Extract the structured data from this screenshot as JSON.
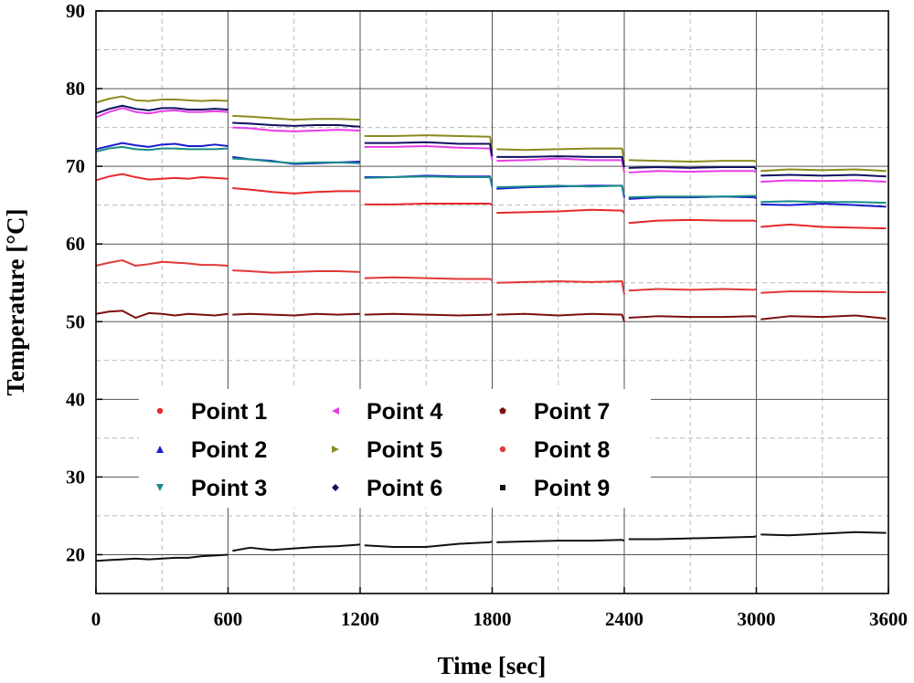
{
  "chart_data": {
    "type": "line",
    "title": "",
    "xlabel": "Time [sec]",
    "ylabel": "Temperature [°C]",
    "xlim": [
      0,
      3600
    ],
    "ylim": [
      15,
      90
    ],
    "xticks": [
      0,
      600,
      1200,
      1800,
      2400,
      3000,
      3600
    ],
    "yticks": [
      20,
      30,
      40,
      50,
      60,
      70,
      80,
      90
    ],
    "x_minor_step": 300,
    "y_minor_step": 5,
    "grid": true,
    "segment_boundaries": [
      600,
      1200,
      1800,
      2400,
      3000
    ],
    "legend": {
      "location": "center-left",
      "columns": 3
    },
    "series": [
      {
        "name": "Point 1",
        "color": "#e8282a",
        "marker": "circle",
        "x": [
          0,
          60,
          120,
          180,
          240,
          300,
          360,
          420,
          480,
          540,
          600,
          620,
          700,
          800,
          900,
          1000,
          1100,
          1200,
          1220,
          1350,
          1500,
          1650,
          1790,
          1800,
          1820,
          1950,
          2100,
          2250,
          2390,
          2400,
          2420,
          2550,
          2700,
          2850,
          2990,
          3000,
          3020,
          3150,
          3300,
          3450,
          3590
        ],
        "values": [
          68.2,
          68.7,
          69.0,
          68.6,
          68.3,
          68.4,
          68.5,
          68.4,
          68.6,
          68.5,
          68.4,
          67.2,
          67.0,
          66.7,
          66.5,
          66.7,
          66.8,
          66.8,
          65.1,
          65.1,
          65.2,
          65.2,
          65.2,
          65.0,
          64.0,
          64.1,
          64.2,
          64.4,
          64.3,
          64.0,
          62.7,
          63.0,
          63.1,
          63.0,
          63.0,
          62.9,
          62.2,
          62.5,
          62.2,
          62.1,
          62.0
        ]
      },
      {
        "name": "Point 2",
        "color": "#1a1ad0",
        "marker": "triangle-up",
        "x": [
          0,
          60,
          120,
          180,
          240,
          300,
          360,
          420,
          480,
          540,
          600,
          620,
          700,
          800,
          900,
          1000,
          1100,
          1200,
          1220,
          1350,
          1500,
          1650,
          1790,
          1800,
          1820,
          1950,
          2100,
          2250,
          2390,
          2400,
          2420,
          2550,
          2700,
          2850,
          2990,
          3000,
          3020,
          3150,
          3300,
          3450,
          3590
        ],
        "values": [
          72.2,
          72.6,
          73.0,
          72.7,
          72.5,
          72.8,
          72.9,
          72.6,
          72.6,
          72.8,
          72.6,
          71.2,
          70.9,
          70.7,
          70.3,
          70.4,
          70.5,
          70.6,
          68.6,
          68.6,
          68.8,
          68.7,
          68.7,
          67.5,
          67.1,
          67.3,
          67.4,
          67.5,
          67.5,
          66.0,
          65.8,
          66.0,
          66.0,
          66.1,
          66.0,
          65.9,
          65.1,
          65.0,
          65.2,
          65.0,
          64.8
        ]
      },
      {
        "name": "Point 3",
        "color": "#1a8a8a",
        "marker": "triangle-down",
        "x": [
          0,
          60,
          120,
          180,
          240,
          300,
          360,
          420,
          480,
          540,
          600,
          620,
          700,
          800,
          900,
          1000,
          1100,
          1200,
          1220,
          1350,
          1500,
          1650,
          1790,
          1800,
          1820,
          1950,
          2100,
          2250,
          2390,
          2400,
          2420,
          2550,
          2700,
          2850,
          2990,
          3000,
          3020,
          3150,
          3300,
          3450,
          3590
        ],
        "values": [
          71.9,
          72.3,
          72.5,
          72.2,
          72.1,
          72.3,
          72.3,
          72.2,
          72.2,
          72.2,
          72.3,
          71.0,
          70.9,
          70.6,
          70.4,
          70.5,
          70.5,
          70.4,
          68.5,
          68.6,
          68.7,
          68.6,
          68.6,
          67.3,
          67.3,
          67.4,
          67.5,
          67.4,
          67.5,
          66.2,
          66.0,
          66.1,
          66.1,
          66.1,
          66.2,
          66.2,
          65.4,
          65.5,
          65.4,
          65.4,
          65.3
        ]
      },
      {
        "name": "Point 4",
        "color": "#e83ce8",
        "marker": "triangle-left",
        "x": [
          0,
          60,
          120,
          180,
          240,
          300,
          360,
          420,
          480,
          540,
          600,
          620,
          700,
          800,
          900,
          1000,
          1100,
          1200,
          1220,
          1350,
          1500,
          1650,
          1790,
          1800,
          1820,
          1950,
          2100,
          2250,
          2390,
          2400,
          2420,
          2550,
          2700,
          2850,
          2990,
          3000,
          3020,
          3150,
          3300,
          3450,
          3590
        ],
        "values": [
          76.3,
          77.0,
          77.5,
          77.0,
          76.8,
          77.1,
          77.2,
          77.0,
          77.0,
          77.1,
          77.0,
          75.0,
          74.9,
          74.6,
          74.5,
          74.6,
          74.7,
          74.6,
          72.5,
          72.5,
          72.6,
          72.4,
          72.3,
          70.8,
          70.7,
          70.8,
          71.0,
          70.8,
          70.8,
          69.2,
          69.2,
          69.4,
          69.3,
          69.4,
          69.4,
          69.2,
          68.0,
          68.2,
          68.1,
          68.2,
          68.0
        ]
      },
      {
        "name": "Point 5",
        "color": "#8a8a1e",
        "marker": "triangle-right",
        "x": [
          0,
          60,
          120,
          180,
          240,
          300,
          360,
          420,
          480,
          540,
          600,
          620,
          700,
          800,
          900,
          1000,
          1100,
          1200,
          1220,
          1350,
          1500,
          1650,
          1790,
          1800,
          1820,
          1950,
          2100,
          2250,
          2390,
          2400,
          2420,
          2550,
          2700,
          2850,
          2990,
          3000,
          3020,
          3150,
          3300,
          3450,
          3590
        ],
        "values": [
          78.2,
          78.7,
          79.0,
          78.5,
          78.4,
          78.6,
          78.6,
          78.5,
          78.4,
          78.5,
          78.4,
          76.5,
          76.4,
          76.2,
          76.0,
          76.1,
          76.1,
          76.0,
          73.9,
          73.9,
          74.0,
          73.9,
          73.8,
          72.3,
          72.2,
          72.1,
          72.2,
          72.3,
          72.3,
          70.6,
          70.8,
          70.7,
          70.6,
          70.7,
          70.7,
          70.6,
          69.4,
          69.6,
          69.5,
          69.6,
          69.4
        ]
      },
      {
        "name": "Point 6",
        "color": "#101060",
        "marker": "diamond",
        "x": [
          0,
          60,
          120,
          180,
          240,
          300,
          360,
          420,
          480,
          540,
          600,
          620,
          700,
          800,
          900,
          1000,
          1100,
          1200,
          1220,
          1350,
          1500,
          1650,
          1790,
          1800,
          1820,
          1950,
          2100,
          2250,
          2390,
          2400,
          2420,
          2550,
          2700,
          2850,
          2990,
          3000,
          3020,
          3150,
          3300,
          3450,
          3590
        ],
        "values": [
          76.8,
          77.4,
          77.8,
          77.4,
          77.2,
          77.5,
          77.5,
          77.3,
          77.3,
          77.4,
          77.3,
          75.6,
          75.5,
          75.3,
          75.2,
          75.3,
          75.3,
          75.1,
          73.0,
          73.0,
          73.1,
          72.9,
          72.9,
          71.3,
          71.2,
          71.2,
          71.3,
          71.2,
          71.2,
          69.9,
          69.8,
          69.9,
          69.8,
          69.9,
          69.9,
          69.6,
          68.8,
          68.9,
          68.8,
          68.9,
          68.7
        ]
      },
      {
        "name": "Point 7",
        "color": "#7a1010",
        "marker": "pentagon",
        "x": [
          0,
          60,
          120,
          180,
          240,
          300,
          360,
          420,
          480,
          540,
          600,
          620,
          700,
          800,
          900,
          1000,
          1100,
          1200,
          1220,
          1350,
          1500,
          1650,
          1790,
          1800,
          1820,
          1950,
          2100,
          2250,
          2390,
          2400,
          2420,
          2550,
          2700,
          2850,
          2990,
          3000,
          3020,
          3150,
          3300,
          3450,
          3590
        ],
        "values": [
          51.0,
          51.3,
          51.4,
          50.5,
          51.1,
          51.0,
          50.8,
          51.0,
          50.9,
          50.8,
          51.0,
          50.9,
          51.0,
          50.9,
          50.8,
          51.0,
          50.9,
          51.0,
          50.9,
          51.0,
          50.9,
          50.8,
          50.9,
          51.0,
          50.9,
          51.0,
          50.8,
          51.0,
          50.9,
          50.0,
          50.5,
          50.7,
          50.6,
          50.6,
          50.7,
          50.6,
          50.3,
          50.7,
          50.6,
          50.8,
          50.4
        ]
      },
      {
        "name": "Point 8",
        "color": "#e03838",
        "marker": "circle",
        "x": [
          0,
          60,
          120,
          180,
          240,
          300,
          360,
          420,
          480,
          540,
          600,
          620,
          700,
          800,
          900,
          1000,
          1100,
          1200,
          1220,
          1350,
          1500,
          1650,
          1790,
          1800,
          1820,
          1950,
          2100,
          2250,
          2390,
          2400,
          2420,
          2550,
          2700,
          2850,
          2990,
          3000,
          3020,
          3150,
          3300,
          3450,
          3590
        ],
        "values": [
          57.2,
          57.6,
          57.9,
          57.2,
          57.4,
          57.7,
          57.6,
          57.5,
          57.3,
          57.3,
          57.2,
          56.6,
          56.5,
          56.3,
          56.4,
          56.5,
          56.5,
          56.4,
          55.6,
          55.7,
          55.6,
          55.5,
          55.5,
          55.3,
          55.0,
          55.1,
          55.2,
          55.1,
          55.2,
          53.5,
          54.0,
          54.2,
          54.1,
          54.2,
          54.1,
          54.2,
          53.7,
          53.9,
          53.9,
          53.8,
          53.8
        ]
      },
      {
        "name": "Point 9",
        "color": "#111111",
        "marker": "square",
        "x": [
          0,
          60,
          120,
          180,
          240,
          300,
          360,
          420,
          480,
          540,
          600,
          620,
          700,
          800,
          900,
          1000,
          1100,
          1200,
          1220,
          1350,
          1500,
          1650,
          1790,
          1800,
          1820,
          1950,
          2100,
          2250,
          2390,
          2400,
          2420,
          2550,
          2700,
          2850,
          2990,
          3000,
          3020,
          3150,
          3300,
          3450,
          3590
        ],
        "values": [
          19.2,
          19.3,
          19.4,
          19.5,
          19.4,
          19.5,
          19.6,
          19.6,
          19.8,
          19.9,
          20.0,
          20.5,
          20.9,
          20.6,
          20.8,
          21.0,
          21.1,
          21.3,
          21.2,
          21.0,
          21.0,
          21.4,
          21.6,
          21.7,
          21.6,
          21.7,
          21.8,
          21.8,
          21.9,
          21.8,
          22.0,
          22.0,
          22.1,
          22.2,
          22.3,
          22.4,
          22.6,
          22.5,
          22.7,
          22.9,
          22.8
        ]
      }
    ]
  }
}
